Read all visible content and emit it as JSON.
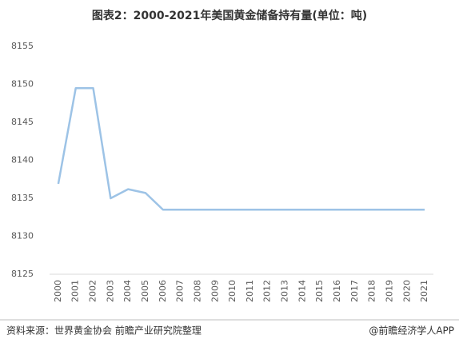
{
  "chart_data": {
    "type": "line",
    "title": "图表2：2000-2021年美国黄金储备持有量(单位：吨)",
    "categories": [
      "2000",
      "2001",
      "2002",
      "2003",
      "2004",
      "2005",
      "2006",
      "2007",
      "2008",
      "2009",
      "2010",
      "2011",
      "2012",
      "2013",
      "2014",
      "2015",
      "2016",
      "2017",
      "2018",
      "2019",
      "2020",
      "2021"
    ],
    "series": [
      {
        "name": "美国黄金储备持有量",
        "color": "#9dc3e6",
        "values": [
          8136.9,
          8149.5,
          8149.5,
          8135.0,
          8136.2,
          8135.7,
          8133.5,
          8133.5,
          8133.5,
          8133.5,
          8133.5,
          8133.5,
          8133.5,
          8133.5,
          8133.5,
          8133.5,
          8133.5,
          8133.5,
          8133.5,
          8133.5,
          8133.5,
          8133.5
        ]
      }
    ],
    "ylim": [
      8125,
      8155
    ],
    "yticks": [
      8125,
      8130,
      8135,
      8140,
      8145,
      8150,
      8155
    ],
    "grid": false,
    "source": "资料来源：世界黄金协会 前瞻产业研究院整理",
    "credit": "@前瞻经济学人APP"
  }
}
